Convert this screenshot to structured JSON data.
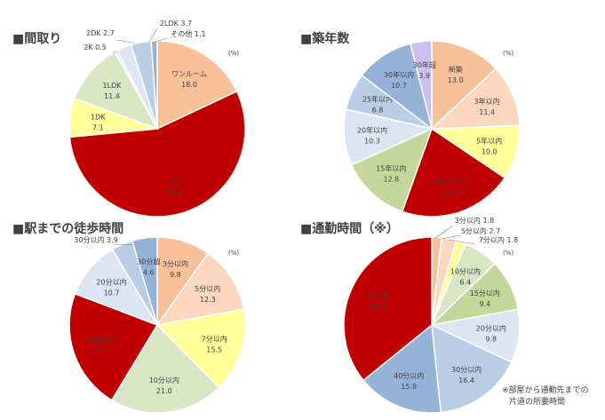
{
  "unit": "(%)",
  "note": [
    "※部屋から通勤先までの",
    "片道の所要時間"
  ],
  "colors": {
    "orange": "#F8C19A",
    "peach": "#FAD7BE",
    "yellow": "#FFFF99",
    "sage": "#D9E6C3",
    "green": "#C4D79B",
    "red": "#C00000",
    "lightblue": "#DCE6F2",
    "midblue": "#B9CDE5",
    "blue": "#95B3D7",
    "lavender": "#CCC0F0"
  },
  "chart_data": [
    {
      "type": "pie",
      "title": "■間取り",
      "slices": [
        {
          "name": "ワンルーム",
          "value": 18.0,
          "color": "orange"
        },
        {
          "name": "1K",
          "value": 55.5,
          "color": "red"
        },
        {
          "name": "1DK",
          "value": 7.1,
          "color": "yellow"
        },
        {
          "name": "1LDK",
          "value": 11.4,
          "color": "sage"
        },
        {
          "name": "2K",
          "value": 0.5,
          "color": "lightblue"
        },
        {
          "name": "2DK",
          "value": 2.7,
          "color": "lightblue"
        },
        {
          "name": "2LDK",
          "value": 3.7,
          "color": "midblue"
        },
        {
          "name": "その他",
          "value": 1.1,
          "color": "blue"
        }
      ]
    },
    {
      "type": "pie",
      "title": "■築年数",
      "slices": [
        {
          "name": "新築",
          "value": 13.0,
          "color": "orange"
        },
        {
          "name": "3年以内",
          "value": 11.4,
          "color": "peach"
        },
        {
          "name": "5年以内",
          "value": 10.0,
          "color": "yellow"
        },
        {
          "name": "10年以内",
          "value": 21.0,
          "color": "red"
        },
        {
          "name": "15年以内",
          "value": 12.8,
          "color": "green"
        },
        {
          "name": "20年以内",
          "value": 10.3,
          "color": "lightblue"
        },
        {
          "name": "25年以内",
          "value": 6.8,
          "color": "midblue"
        },
        {
          "name": "30年以内",
          "value": 10.7,
          "color": "blue"
        },
        {
          "name": "30年超",
          "value": 3.9,
          "color": "lavender"
        }
      ]
    },
    {
      "type": "pie",
      "title": "■駅までの徒歩時間",
      "slices": [
        {
          "name": "3分以内",
          "value": 9.8,
          "color": "orange"
        },
        {
          "name": "5分以内",
          "value": 12.3,
          "color": "peach"
        },
        {
          "name": "7分以内",
          "value": 15.5,
          "color": "yellow"
        },
        {
          "name": "10分以内",
          "value": 21.0,
          "color": "sage"
        },
        {
          "name": "15分以内",
          "value": 22.1,
          "color": "red"
        },
        {
          "name": "20分以内",
          "value": 10.7,
          "color": "lightblue"
        },
        {
          "name": "30分以内",
          "value": 3.9,
          "color": "midblue"
        },
        {
          "name": "30分超",
          "value": 4.6,
          "color": "blue"
        }
      ]
    },
    {
      "type": "pie",
      "title": "■通勤時間（※）",
      "slices": [
        {
          "name": "3分以内",
          "value": 1.8,
          "color": "orange"
        },
        {
          "name": "5分以内",
          "value": 2.7,
          "color": "peach"
        },
        {
          "name": "7分以内",
          "value": 1.8,
          "color": "yellow"
        },
        {
          "name": "10分以内",
          "value": 6.4,
          "color": "sage"
        },
        {
          "name": "15分以内",
          "value": 9.4,
          "color": "green"
        },
        {
          "name": "20分以内",
          "value": 9.8,
          "color": "lightblue"
        },
        {
          "name": "30分以内",
          "value": 16.4,
          "color": "midblue"
        },
        {
          "name": "40分以内",
          "value": 15.8,
          "color": "blue"
        },
        {
          "name": "40分超",
          "value": 35.8,
          "color": "red"
        }
      ]
    }
  ]
}
